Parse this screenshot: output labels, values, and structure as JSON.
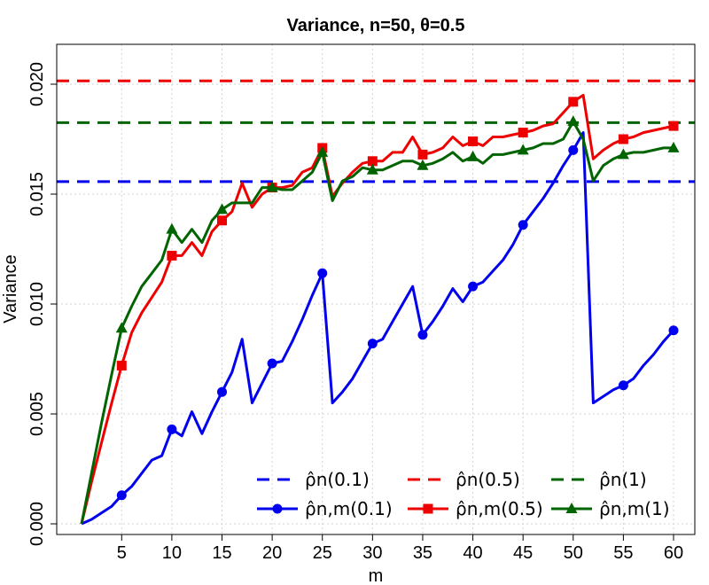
{
  "chart_data": {
    "type": "line",
    "title": "Variance, n=50, θ=0.5",
    "xlabel": "m",
    "ylabel": "Variance",
    "xlim": [
      1,
      60
    ],
    "ylim": [
      0,
      0.022
    ],
    "xticks": [
      5,
      10,
      15,
      20,
      25,
      30,
      35,
      40,
      45,
      50,
      55,
      60
    ],
    "xtick_labels": [
      "5",
      "10",
      "15",
      "20",
      "25",
      "30",
      "35",
      "40",
      "45",
      "50",
      "55",
      "60"
    ],
    "yticks": [
      0,
      0.005,
      0.01,
      0.015,
      0.02
    ],
    "ytick_labels": [
      "0.000",
      "0.005",
      "0.010",
      "0.015",
      "0.020"
    ],
    "grid": true,
    "legend_position": "bottom-right",
    "colors": {
      "blue": "#0000ee",
      "red": "#ee0000",
      "green": "#006400"
    },
    "reference_lines": [
      {
        "name": "ρ̂n(0.1)",
        "y": 0.01557,
        "color": "#0000ee",
        "style": "dashed"
      },
      {
        "name": "ρ̂n(0.5)",
        "y": 0.02015,
        "color": "#ee0000",
        "style": "dashed"
      },
      {
        "name": "ρ̂n(1)",
        "y": 0.01825,
        "color": "#006400",
        "style": "dashed"
      }
    ],
    "series": [
      {
        "name": "ρ̂n,m(0.1)",
        "color": "#0000ee",
        "marker": "circle",
        "x": [
          1,
          2,
          3,
          4,
          5,
          6,
          7,
          8,
          9,
          10,
          11,
          12,
          13,
          14,
          15,
          16,
          17,
          18,
          19,
          20,
          21,
          22,
          23,
          24,
          25,
          26,
          27,
          28,
          29,
          30,
          31,
          32,
          33,
          34,
          35,
          36,
          37,
          38,
          39,
          40,
          41,
          42,
          43,
          44,
          45,
          46,
          47,
          48,
          49,
          50,
          51,
          52,
          53,
          54,
          55,
          56,
          57,
          58,
          59,
          60
        ],
        "values": [
          0.0,
          0.0002,
          0.0005,
          0.0008,
          0.0013,
          0.0017,
          0.0023,
          0.0029,
          0.0031,
          0.0043,
          0.004,
          0.0051,
          0.0041,
          0.0051,
          0.006,
          0.0069,
          0.0084,
          0.0055,
          0.0064,
          0.0073,
          0.0074,
          0.0083,
          0.0093,
          0.0104,
          0.0114,
          0.0055,
          0.006,
          0.0066,
          0.0074,
          0.0082,
          0.0084,
          0.0092,
          0.01,
          0.0108,
          0.0086,
          0.0092,
          0.0099,
          0.0107,
          0.0101,
          0.0108,
          0.011,
          0.0115,
          0.012,
          0.0127,
          0.0136,
          0.0142,
          0.0148,
          0.0155,
          0.0163,
          0.017,
          0.0178,
          0.0055,
          0.0058,
          0.0061,
          0.0063,
          0.0066,
          0.0072,
          0.0077,
          0.0083,
          0.0088
        ],
        "marker_x": [
          5,
          10,
          15,
          20,
          25,
          30,
          35,
          40,
          45,
          50,
          55,
          60
        ]
      },
      {
        "name": "ρ̂n,m(0.5)",
        "color": "#ee0000",
        "marker": "square",
        "x": [
          1,
          2,
          3,
          4,
          5,
          6,
          7,
          8,
          9,
          10,
          11,
          12,
          13,
          14,
          15,
          16,
          17,
          18,
          19,
          20,
          21,
          22,
          23,
          24,
          25,
          26,
          27,
          28,
          29,
          30,
          31,
          32,
          33,
          34,
          35,
          36,
          37,
          38,
          39,
          40,
          41,
          42,
          43,
          44,
          45,
          46,
          47,
          48,
          49,
          50,
          51,
          52,
          53,
          54,
          55,
          56,
          57,
          58,
          59,
          60
        ],
        "values": [
          0.0,
          0.0019,
          0.0037,
          0.0055,
          0.0072,
          0.0087,
          0.0096,
          0.0103,
          0.011,
          0.0122,
          0.0122,
          0.0128,
          0.0122,
          0.0133,
          0.0138,
          0.0142,
          0.0155,
          0.0144,
          0.015,
          0.0153,
          0.0153,
          0.0154,
          0.016,
          0.0162,
          0.0171,
          0.0149,
          0.0155,
          0.016,
          0.0164,
          0.0165,
          0.0165,
          0.0169,
          0.0169,
          0.0176,
          0.0168,
          0.0169,
          0.0171,
          0.0176,
          0.0172,
          0.0174,
          0.0172,
          0.0176,
          0.0176,
          0.0177,
          0.0178,
          0.0179,
          0.0181,
          0.0182,
          0.0187,
          0.0192,
          0.0195,
          0.0166,
          0.017,
          0.0173,
          0.0175,
          0.0176,
          0.0178,
          0.0179,
          0.018,
          0.0181
        ],
        "marker_x": [
          5,
          10,
          15,
          20,
          25,
          30,
          35,
          40,
          45,
          50,
          55,
          60
        ]
      },
      {
        "name": "ρ̂n,m(1)",
        "color": "#006400",
        "marker": "triangle",
        "x": [
          1,
          2,
          3,
          4,
          5,
          6,
          7,
          8,
          9,
          10,
          11,
          12,
          13,
          14,
          15,
          16,
          17,
          18,
          19,
          20,
          21,
          22,
          23,
          24,
          25,
          26,
          27,
          28,
          29,
          30,
          31,
          32,
          33,
          34,
          35,
          36,
          37,
          38,
          39,
          40,
          41,
          42,
          43,
          44,
          45,
          46,
          47,
          48,
          49,
          50,
          51,
          52,
          53,
          54,
          55,
          56,
          57,
          58,
          59,
          60
        ],
        "values": [
          0.0,
          0.0023,
          0.0046,
          0.0068,
          0.0089,
          0.0099,
          0.0108,
          0.0114,
          0.012,
          0.0134,
          0.0128,
          0.0134,
          0.0128,
          0.0138,
          0.0143,
          0.0146,
          0.0146,
          0.0146,
          0.0153,
          0.0153,
          0.0152,
          0.0152,
          0.0156,
          0.016,
          0.0169,
          0.0147,
          0.0156,
          0.0158,
          0.0162,
          0.0161,
          0.0161,
          0.0163,
          0.0165,
          0.0165,
          0.0163,
          0.0164,
          0.0166,
          0.0169,
          0.0165,
          0.0167,
          0.0164,
          0.0168,
          0.0168,
          0.0169,
          0.017,
          0.0171,
          0.0173,
          0.0173,
          0.0175,
          0.0183,
          0.0175,
          0.0156,
          0.0163,
          0.0166,
          0.0168,
          0.0169,
          0.0169,
          0.017,
          0.0171,
          0.0171
        ],
        "marker_x": [
          5,
          10,
          15,
          20,
          25,
          30,
          35,
          40,
          45,
          50,
          55,
          60
        ]
      }
    ],
    "legend": {
      "items": [
        {
          "label": "ρ̂n(0.1)",
          "color": "#0000ee",
          "kind": "dashed"
        },
        {
          "label": "ρ̂n(0.5)",
          "color": "#ee0000",
          "kind": "dashed"
        },
        {
          "label": "ρ̂n(1)",
          "color": "#006400",
          "kind": "dashed"
        },
        {
          "label": "ρ̂n,m(0.1)",
          "color": "#0000ee",
          "kind": "circle"
        },
        {
          "label": "ρ̂n,m(0.5)",
          "color": "#ee0000",
          "kind": "square"
        },
        {
          "label": "ρ̂n,m(1)",
          "color": "#006400",
          "kind": "triangle"
        }
      ]
    }
  }
}
